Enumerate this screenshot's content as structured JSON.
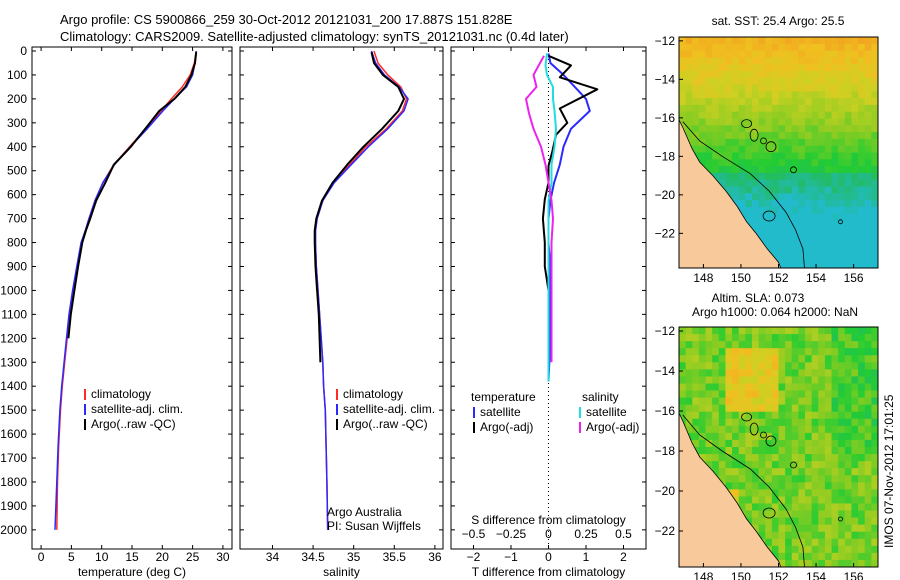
{
  "header": {
    "line1": "Argo profile: CS 5900866_259 30-Oct-2012 20121031_200 17.887S 151.828E",
    "line2": "Climatology: CARS2009. Satellite-adjusted climatology: synTS_20121031.nc (0.4d later)"
  },
  "stamp": "IMOS 07-Nov-2012 17:01:25",
  "colors": {
    "climatology": "#ff2a2a",
    "satellite": "#2a2aff",
    "argo": "#000000",
    "sal_satellite": "#22dddd",
    "sal_argo": "#ee22ee",
    "land": "#f7c99b",
    "contour": "#000000"
  },
  "chart_data": [
    {
      "id": "temperature",
      "type": "line",
      "xlabel": "temperature (deg C)",
      "ylabel": "",
      "xlim": [
        -1.5,
        31.5
      ],
      "ylim": [
        2080,
        0
      ],
      "xticks": [
        0,
        5,
        10,
        15,
        20,
        25,
        30
      ],
      "yticks": [
        0,
        100,
        200,
        300,
        400,
        500,
        600,
        700,
        800,
        900,
        1000,
        1100,
        1200,
        1300,
        1400,
        1500,
        1600,
        1700,
        1800,
        1900,
        2000
      ],
      "legend": [
        "climatology",
        "satellite-adj. clim.",
        "Argo(..raw -QC)"
      ],
      "series": [
        {
          "name": "climatology",
          "x": [
            25.6,
            25.3,
            24.6,
            23.3,
            21.5,
            19.8,
            17.3,
            14.6,
            12.0,
            10.2,
            8.9,
            7.9,
            7.3,
            6.7,
            6.0,
            5.3,
            4.7,
            4.3,
            3.9,
            3.5,
            3.2,
            2.9,
            2.7,
            2.6
          ],
          "y": [
            0,
            50,
            100,
            150,
            200,
            250,
            325,
            400,
            475,
            550,
            625,
            700,
            750,
            800,
            900,
            1000,
            1100,
            1200,
            1300,
            1400,
            1500,
            1650,
            1800,
            2000
          ]
        },
        {
          "name": "satellite-adj. clim.",
          "x": [
            25.6,
            25.4,
            25.0,
            24.0,
            22.0,
            20.1,
            17.5,
            14.7,
            12.1,
            10.2,
            8.9,
            7.9,
            7.3,
            6.6,
            5.9,
            5.2,
            4.6,
            4.2,
            3.8,
            3.4,
            3.1,
            2.8,
            2.6,
            2.3
          ],
          "y": [
            0,
            50,
            100,
            150,
            200,
            250,
            325,
            400,
            475,
            550,
            625,
            700,
            750,
            800,
            900,
            1000,
            1100,
            1200,
            1300,
            1400,
            1500,
            1650,
            1800,
            2000
          ]
        },
        {
          "name": "Argo(..raw -QC)",
          "x": [
            25.6,
            25.4,
            24.8,
            23.8,
            22.0,
            19.5,
            17.2,
            14.8,
            12.0,
            10.6,
            9.1,
            8.1,
            7.4,
            6.8,
            6.1,
            5.5,
            4.9,
            4.5
          ],
          "y": [
            5,
            50,
            100,
            150,
            200,
            250,
            325,
            400,
            475,
            550,
            625,
            700,
            750,
            800,
            900,
            1000,
            1100,
            1200
          ]
        }
      ]
    },
    {
      "id": "salinity",
      "type": "line",
      "xlabel": "salinity",
      "xlim": [
        33.6,
        36.1
      ],
      "ylim": [
        2080,
        0
      ],
      "xticks": [
        34,
        34.5,
        35,
        35.5,
        36
      ],
      "legend": [
        "climatology",
        "satellite-adj. clim.",
        "Argo(..raw -QC)"
      ],
      "annotation": [
        "Argo Australia",
        "PI: Susan Wijffels"
      ],
      "series": [
        {
          "name": "climatology",
          "x": [
            35.25,
            35.3,
            35.42,
            35.58,
            35.65,
            35.6,
            35.4,
            35.15,
            34.95,
            34.75,
            34.62,
            34.55,
            34.53,
            34.53,
            34.54,
            34.56,
            34.58,
            34.6,
            34.62,
            34.63,
            34.65,
            34.66,
            34.67,
            34.68
          ],
          "y": [
            0,
            50,
            100,
            150,
            200,
            250,
            325,
            400,
            475,
            550,
            625,
            700,
            750,
            800,
            900,
            1000,
            1100,
            1200,
            1300,
            1400,
            1500,
            1650,
            1800,
            2000
          ]
        },
        {
          "name": "satellite-adj. clim.",
          "x": [
            35.22,
            35.27,
            35.38,
            35.56,
            35.67,
            35.62,
            35.42,
            35.18,
            34.97,
            34.76,
            34.62,
            34.55,
            34.53,
            34.53,
            34.54,
            34.56,
            34.58,
            34.6,
            34.62,
            34.63,
            34.65,
            34.66,
            34.67,
            34.68
          ],
          "y": [
            0,
            50,
            100,
            150,
            200,
            250,
            325,
            400,
            475,
            550,
            625,
            700,
            750,
            800,
            900,
            1000,
            1100,
            1200,
            1300,
            1400,
            1500,
            1650,
            1800,
            2000
          ]
        },
        {
          "name": "Argo(..raw -QC)",
          "x": [
            35.22,
            35.25,
            35.36,
            35.55,
            35.62,
            35.55,
            35.35,
            35.12,
            34.92,
            34.74,
            34.61,
            34.54,
            34.52,
            34.52,
            34.53,
            34.55,
            34.57,
            34.58,
            34.59
          ],
          "y": [
            5,
            50,
            100,
            150,
            200,
            250,
            325,
            400,
            475,
            550,
            625,
            700,
            750,
            800,
            900,
            1000,
            1100,
            1200,
            1300
          ]
        }
      ]
    },
    {
      "id": "difference",
      "type": "line",
      "xlabel": "T difference from climatology",
      "xlabel_top": "S difference from climatology",
      "xlim": [
        -2.6,
        2.6
      ],
      "ylim": [
        2080,
        0
      ],
      "xticks": [
        -2,
        -1,
        0,
        1,
        2
      ],
      "s_ticks": [
        -0.5,
        -0.25,
        0,
        0.25,
        0.5
      ],
      "legend_groups": [
        {
          "title": "temperature",
          "entries": [
            "satellite",
            "Argo(-adj)"
          ]
        },
        {
          "title": "salinity",
          "entries": [
            "satellite",
            "Argo(-adj)"
          ]
        }
      ],
      "series": [
        {
          "name": "temperature satellite",
          "x": [
            0.0,
            0.05,
            0.4,
            0.7,
            1.0,
            1.1,
            0.6,
            0.4,
            0.3,
            0.15,
            0.05,
            0.0,
            0.0,
            0.05,
            0.05,
            0.05,
            0.05,
            0.0
          ],
          "y": [
            10,
            50,
            100,
            150,
            200,
            250,
            325,
            400,
            475,
            550,
            625,
            700,
            800,
            900,
            1000,
            1100,
            1200,
            1380
          ]
        },
        {
          "name": "temperature Argo(-adj)",
          "x": [
            0.0,
            0.6,
            0.3,
            1.3,
            0.3,
            0.5,
            0.2,
            0.1,
            0.0,
            0.0,
            -0.1,
            -0.15,
            -0.1,
            -0.1,
            0.0,
            0.0
          ],
          "y": [
            20,
            60,
            110,
            160,
            240,
            300,
            350,
            420,
            480,
            550,
            620,
            700,
            800,
            900,
            1000,
            1100
          ]
        },
        {
          "name": "salinity satellite",
          "x": [
            -0.01,
            -0.02,
            -0.01,
            0.03,
            0.03,
            0.04,
            0.05,
            0.04,
            0.02,
            0.02,
            0.0,
            0.0,
            0.0,
            0.0,
            0.0,
            0.0,
            0.0,
            0.0,
            0.0
          ],
          "y": [
            10,
            60,
            100,
            150,
            200,
            250,
            325,
            400,
            475,
            550,
            625,
            700,
            800,
            900,
            1000,
            1100,
            1200,
            1300,
            1380
          ]
        },
        {
          "name": "salinity Argo(-adj)",
          "x": [
            -0.03,
            -0.1,
            -0.08,
            -0.15,
            -0.13,
            -0.1,
            -0.05,
            -0.02,
            0.0,
            0.02,
            0.03,
            0.02,
            0.02,
            0.02,
            0.02,
            0.02,
            0.02
          ],
          "y": [
            20,
            100,
            150,
            200,
            260,
            325,
            400,
            475,
            550,
            625,
            700,
            800,
            900,
            1000,
            1100,
            1200,
            1300
          ]
        }
      ]
    },
    {
      "id": "sst_map",
      "type": "heatmap",
      "title": "sat. SST: 25.4  Argo: 25.5",
      "xlim": [
        146.7,
        157.3
      ],
      "ylim": [
        -23.8,
        -11.8
      ],
      "xticks": [
        148,
        150,
        152,
        154,
        156
      ],
      "yticks": [
        -12,
        -14,
        -16,
        -18,
        -20,
        -22
      ]
    },
    {
      "id": "sla_map",
      "type": "heatmap",
      "title": [
        "Altim. SLA: 0.073",
        "Argo h1000: 0.064 h2000: NaN"
      ],
      "xlim": [
        146.7,
        157.3
      ],
      "ylim": [
        -23.8,
        -11.8
      ],
      "xticks": [
        148,
        150,
        152,
        154,
        156
      ],
      "yticks": [
        -12,
        -14,
        -16,
        -18,
        -20,
        -22
      ]
    }
  ]
}
